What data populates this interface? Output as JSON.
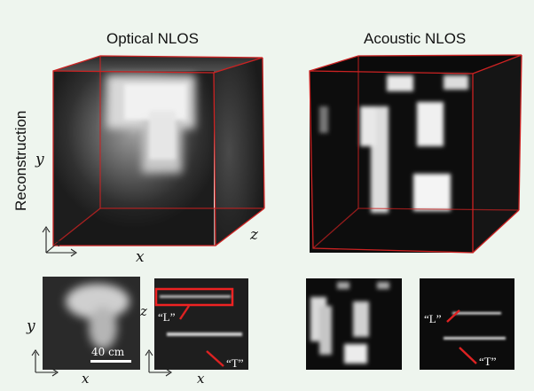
{
  "panels": {
    "optical_title": "Optical NLOS",
    "acoustic_title": "Acoustic NLOS"
  },
  "row_label": "Reconstruction",
  "axes": {
    "y": "y",
    "x": "x",
    "z": "z"
  },
  "insets": {
    "scale_bar": "40 cm",
    "label_L": "“L”",
    "label_T": "“T”"
  },
  "colors": {
    "background": "#eef5ee",
    "cube_edge": "#cc2222",
    "callout": "#dd2222"
  }
}
